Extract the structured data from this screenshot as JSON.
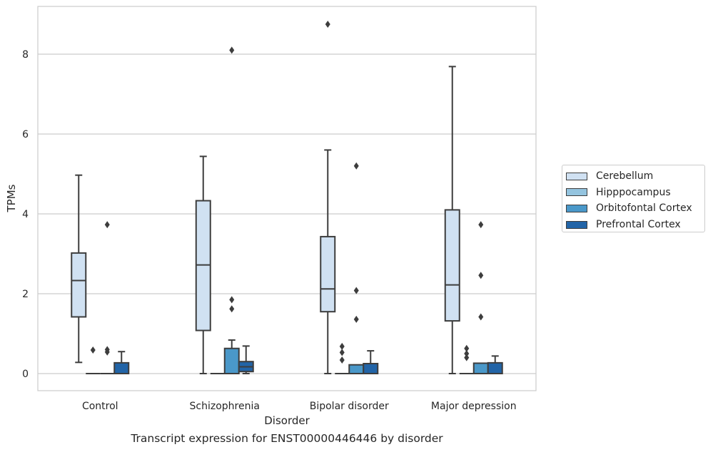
{
  "caption": "Transcript expression for ENST00000446446 by disorder",
  "chart_data": {
    "type": "box",
    "xlabel": "Disorder",
    "ylabel": "TPMs",
    "ylim": [
      -0.4,
      9.2
    ],
    "yticks": [
      0,
      2,
      4,
      6,
      8
    ],
    "grid": "horizontal",
    "legend_position": "right",
    "categories": [
      "Control",
      "Schizophrenia",
      "Bipolar disorder",
      "Major depression"
    ],
    "series": [
      {
        "name": "Cerebellum",
        "color": "#d0e1f2",
        "boxes": [
          {
            "whislo": 0.28,
            "q1": 1.42,
            "med": 2.33,
            "q3": 3.02,
            "whishi": 4.97,
            "fliers": []
          },
          {
            "whislo": 0.0,
            "q1": 1.08,
            "med": 2.72,
            "q3": 4.33,
            "whishi": 5.44,
            "fliers": []
          },
          {
            "whislo": 0.0,
            "q1": 1.55,
            "med": 2.12,
            "q3": 3.43,
            "whishi": 5.6,
            "fliers": [
              8.75
            ]
          },
          {
            "whislo": 0.0,
            "q1": 1.32,
            "med": 2.22,
            "q3": 4.1,
            "whishi": 7.69,
            "fliers": []
          }
        ]
      },
      {
        "name": "Hipppocampus",
        "color": "#94c4df",
        "boxes": [
          {
            "whislo": 0.0,
            "q1": 0.0,
            "med": 0.0,
            "q3": 0.0,
            "whishi": 0.0,
            "fliers": [
              0.59
            ]
          },
          {
            "whislo": 0.0,
            "q1": 0.0,
            "med": 0.0,
            "q3": 0.0,
            "whishi": 0.0,
            "fliers": []
          },
          {
            "whislo": 0.0,
            "q1": 0.0,
            "med": 0.0,
            "q3": 0.0,
            "whishi": 0.0,
            "fliers": [
              0.34,
              0.53,
              0.68
            ]
          },
          {
            "whislo": 0.0,
            "q1": 0.0,
            "med": 0.0,
            "q3": 0.0,
            "whishi": 0.0,
            "fliers": [
              0.4,
              0.5,
              0.63
            ]
          }
        ]
      },
      {
        "name": "Orbitofontal Cortex",
        "color": "#4a98c9",
        "boxes": [
          {
            "whislo": 0.0,
            "q1": 0.0,
            "med": 0.0,
            "q3": 0.0,
            "whishi": 0.0,
            "fliers": [
              0.54,
              0.6,
              3.73
            ]
          },
          {
            "whislo": 0.0,
            "q1": 0.0,
            "med": 0.0,
            "q3": 0.63,
            "whishi": 0.84,
            "fliers": [
              1.62,
              1.85,
              8.1
            ]
          },
          {
            "whislo": 0.0,
            "q1": 0.0,
            "med": 0.0,
            "q3": 0.22,
            "whishi": 0.22,
            "fliers": [
              1.36,
              2.08,
              5.2
            ]
          },
          {
            "whislo": 0.0,
            "q1": 0.0,
            "med": 0.0,
            "q3": 0.26,
            "whishi": 0.26,
            "fliers": [
              1.42,
              2.46,
              3.73
            ]
          }
        ]
      },
      {
        "name": "Prefrontal Cortex",
        "color": "#2264a7",
        "boxes": [
          {
            "whislo": 0.0,
            "q1": 0.0,
            "med": 0.0,
            "q3": 0.27,
            "whishi": 0.55,
            "fliers": []
          },
          {
            "whislo": 0.0,
            "q1": 0.05,
            "med": 0.17,
            "q3": 0.3,
            "whishi": 0.69,
            "fliers": []
          },
          {
            "whislo": 0.0,
            "q1": 0.0,
            "med": 0.0,
            "q3": 0.25,
            "whishi": 0.57,
            "fliers": []
          },
          {
            "whislo": 0.0,
            "q1": 0.0,
            "med": 0.0,
            "q3": 0.27,
            "whishi": 0.44,
            "fliers": []
          }
        ]
      }
    ]
  }
}
